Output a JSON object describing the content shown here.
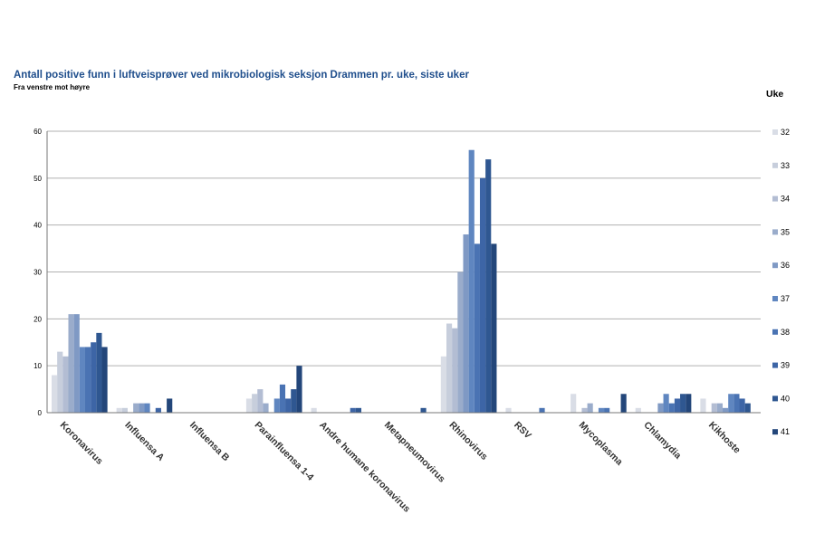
{
  "chart_data": {
    "type": "bar",
    "title": "Antall positive funn i luftveisprøver ved mikrobiologisk seksjon Drammen pr. uke, siste uker",
    "subtitle": "Fra venstre mot høyre",
    "legend_title": "Uke",
    "legend_position": "right",
    "ylim": [
      0,
      60
    ],
    "yticks": [
      0,
      10,
      20,
      30,
      40,
      50,
      60
    ],
    "grid": true,
    "categories": [
      "Koronavirus",
      "Influensa A",
      "Influensa B",
      "Parainfluensa 1-4",
      "Andre humane koronavirus",
      "Metapneumovirus",
      "Rhinovirus",
      "RSV",
      "Mycoplasma",
      "Chlamydia",
      "Kikhoste"
    ],
    "series": [
      {
        "name": "32",
        "color": "#d9dde6",
        "values": [
          8,
          1,
          0,
          3,
          1,
          0,
          12,
          1,
          4,
          1,
          3
        ]
      },
      {
        "name": "33",
        "color": "#c7cedc",
        "values": [
          13,
          1,
          0,
          4,
          0,
          0,
          19,
          0,
          0,
          0,
          0
        ]
      },
      {
        "name": "34",
        "color": "#b3bdd3",
        "values": [
          12,
          0,
          0,
          5,
          0,
          0,
          18,
          0,
          1,
          0,
          2
        ]
      },
      {
        "name": "35",
        "color": "#9aaccb",
        "values": [
          21,
          2,
          0,
          2,
          0,
          0,
          30,
          0,
          2,
          0,
          2
        ]
      },
      {
        "name": "36",
        "color": "#7f99c4",
        "values": [
          21,
          2,
          0,
          0,
          0,
          0,
          38,
          0,
          0,
          2,
          1
        ]
      },
      {
        "name": "37",
        "color": "#5f86c0",
        "values": [
          14,
          2,
          0,
          3,
          0,
          0,
          56,
          0,
          1,
          4,
          4
        ]
      },
      {
        "name": "38",
        "color": "#4a73b3",
        "values": [
          14,
          0,
          0,
          6,
          0,
          0,
          36,
          1,
          1,
          2,
          4
        ]
      },
      {
        "name": "39",
        "color": "#3d65a6",
        "values": [
          15,
          1,
          0,
          3,
          1,
          0,
          50,
          0,
          0,
          3,
          3
        ]
      },
      {
        "name": "40",
        "color": "#2f5791",
        "values": [
          17,
          0,
          0,
          5,
          1,
          1,
          54,
          0,
          0,
          4,
          2
        ]
      },
      {
        "name": "41",
        "color": "#23467a",
        "values": [
          14,
          3,
          0,
          10,
          0,
          0,
          36,
          0,
          4,
          4,
          0
        ]
      }
    ]
  }
}
